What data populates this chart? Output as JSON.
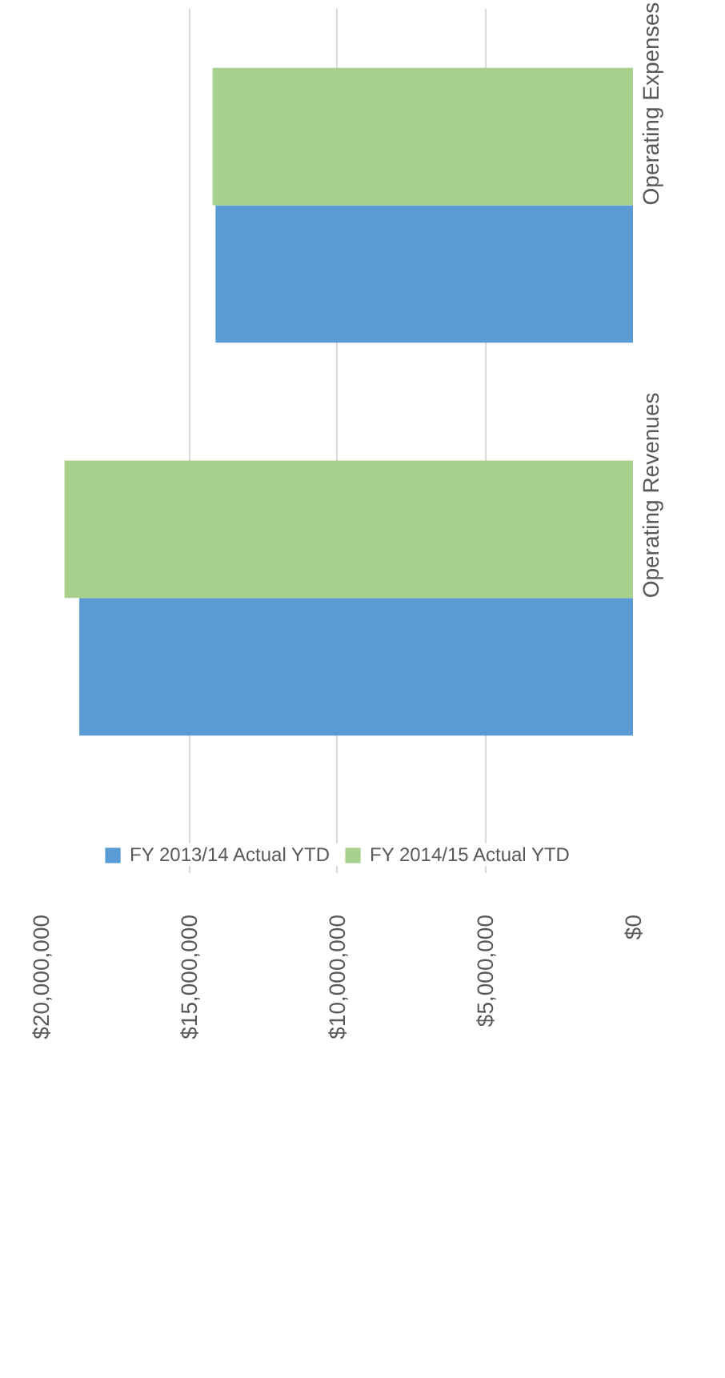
{
  "chart_data": {
    "type": "bar",
    "orientation": "horizontal",
    "categories": [
      "Operating Expenses",
      "Operating Revenues"
    ],
    "series": [
      {
        "name": "FY 2013/14 Actual YTD",
        "color": "#5b9bd5",
        "values": [
          14100000,
          18700000
        ]
      },
      {
        "name": "FY 2014/15 Actual YTD",
        "color": "#a9d18e",
        "values": [
          14200000,
          19200000
        ]
      }
    ],
    "xlim": [
      20000000,
      0
    ],
    "xticks": [
      {
        "value": 0,
        "label": "$0"
      },
      {
        "value": 5000000,
        "label": "$5,000,000"
      },
      {
        "value": 10000000,
        "label": "$10,000,000"
      },
      {
        "value": 15000000,
        "label": "$15,000,000"
      },
      {
        "value": 20000000,
        "label": "$20,000,000"
      }
    ],
    "grid": "x",
    "legend": "bottom"
  }
}
